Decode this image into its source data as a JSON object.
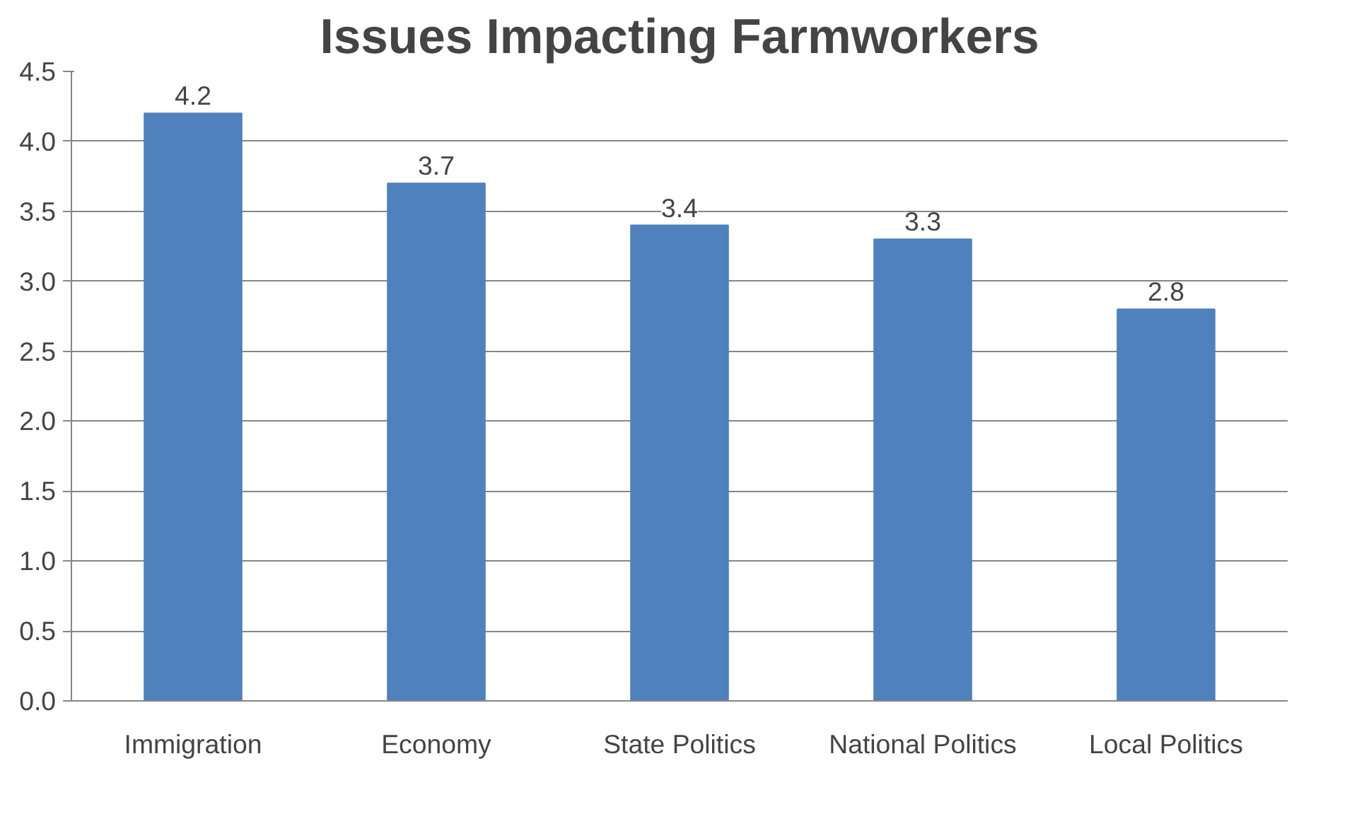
{
  "chart_data": {
    "type": "bar",
    "title": "Issues Impacting Farmworkers",
    "categories": [
      "Immigration",
      "Economy",
      "State Politics",
      "National Politics",
      "Local Politics"
    ],
    "values": [
      4.2,
      3.7,
      3.4,
      3.3,
      2.8
    ],
    "color": "#4f81bd",
    "ylim": [
      0,
      4.5
    ],
    "yticks": [
      {
        "value": 0,
        "label": "0.0"
      },
      {
        "value": 0.5,
        "label": "0.5"
      },
      {
        "value": 1,
        "label": "1.0"
      },
      {
        "value": 1.5,
        "label": "1.5"
      },
      {
        "value": 2,
        "label": "2.0"
      },
      {
        "value": 2.5,
        "label": "2.5"
      },
      {
        "value": 3,
        "label": "3.0"
      },
      {
        "value": 3.5,
        "label": "3.5"
      },
      {
        "value": 4,
        "label": "4.0"
      },
      {
        "value": 4.5,
        "label": "4.5"
      }
    ],
    "grid": "y",
    "data_labels": true
  }
}
